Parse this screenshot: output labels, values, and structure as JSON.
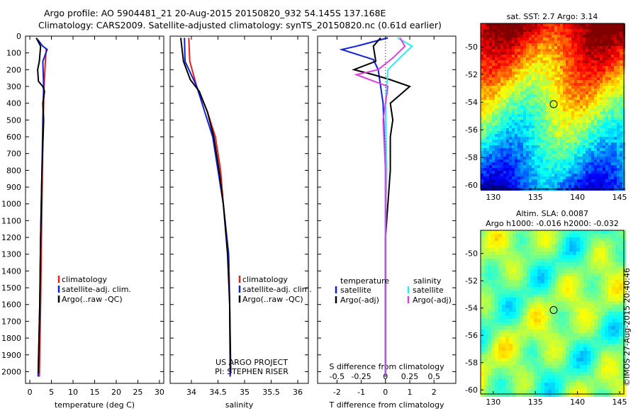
{
  "header": {
    "line1": "Argo profile: AO 5904481_21 20-Aug-2015 20150820_932 54.145S 137.168E",
    "line2": "Climatology: CARS2009. Satellite-adjusted climatology: synTS_20150820.nc (0.61d earlier)"
  },
  "credits": {
    "project": "US ARGO PROJECT",
    "pi": "PI: STEPHEN RISER",
    "imos": "©IMOS 27-Aug-2015 20:40:46"
  },
  "colors": {
    "climatology": "#e8201c",
    "satellite": "#1020d8",
    "argo": "#000000",
    "sat_salinity": "#30e8f0",
    "argo_salinity": "#e040e0"
  },
  "chart_data": [
    {
      "type": "line",
      "id": "temperature",
      "xlabel": "temperature (deg C)",
      "xlim": [
        -1,
        31
      ],
      "xticks": [
        0,
        5,
        10,
        15,
        20,
        25,
        30
      ],
      "ylim": [
        0,
        2070
      ],
      "yticks": [
        0,
        100,
        200,
        300,
        400,
        500,
        600,
        700,
        800,
        900,
        1000,
        1100,
        1200,
        1300,
        1400,
        1500,
        1600,
        1700,
        1800,
        1900,
        2000
      ],
      "legend": [
        "climatology",
        "satellite-adj. clim.",
        "Argo(..raw -QC)"
      ],
      "series": [
        {
          "name": "climatology",
          "color": "#e8201c",
          "points": [
            [
              3.8,
              70
            ],
            [
              3.6,
              150
            ],
            [
              3.3,
              300
            ],
            [
              3.1,
              500
            ],
            [
              2.9,
              800
            ],
            [
              2.7,
              1200
            ],
            [
              2.5,
              1600
            ],
            [
              2.2,
              2030
            ]
          ]
        },
        {
          "name": "satellite-adj. clim.",
          "color": "#1020d8",
          "points": [
            [
              1.8,
              20
            ],
            [
              3.0,
              60
            ],
            [
              4.0,
              80
            ],
            [
              3.0,
              150
            ],
            [
              3.2,
              300
            ],
            [
              3.0,
              500
            ],
            [
              2.8,
              800
            ],
            [
              2.5,
              1200
            ],
            [
              2.3,
              1600
            ],
            [
              1.9,
              2030
            ]
          ]
        },
        {
          "name": "Argo(..raw -QC)",
          "color": "#000000",
          "points": [
            [
              1.5,
              10
            ],
            [
              2.5,
              60
            ],
            [
              2.2,
              150
            ],
            [
              1.8,
              200
            ],
            [
              2.0,
              270
            ],
            [
              3.0,
              300
            ],
            [
              3.4,
              330
            ],
            [
              3.0,
              400
            ],
            [
              3.2,
              500
            ],
            [
              2.8,
              800
            ],
            [
              2.5,
              1200
            ],
            [
              2.3,
              1600
            ],
            [
              2.0,
              1950
            ],
            [
              2.0,
              2010
            ]
          ]
        }
      ]
    },
    {
      "type": "line",
      "id": "salinity",
      "xlabel": "salinity",
      "xlim": [
        33.6,
        36.2
      ],
      "xticks": [
        34,
        34.5,
        35,
        35.5,
        36
      ],
      "xticklabels": [
        "34",
        "34.5",
        "35",
        "35.5",
        "36"
      ],
      "ylim": [
        0,
        2070
      ],
      "legend": [
        "climatology",
        "satellite-adj. clim.",
        "Argo(..raw -QC)"
      ],
      "series": [
        {
          "name": "climatology",
          "color": "#e8201c",
          "points": [
            [
              33.95,
              10
            ],
            [
              33.97,
              150
            ],
            [
              34.1,
              300
            ],
            [
              34.3,
              450
            ],
            [
              34.45,
              600
            ],
            [
              34.55,
              800
            ],
            [
              34.6,
              1000
            ],
            [
              34.7,
              1300
            ],
            [
              34.72,
              1600
            ],
            [
              34.73,
              2030
            ]
          ]
        },
        {
          "name": "satellite-adj. clim.",
          "color": "#1020d8",
          "points": [
            [
              33.87,
              10
            ],
            [
              33.88,
              150
            ],
            [
              34.1,
              300
            ],
            [
              34.25,
              450
            ],
            [
              34.4,
              600
            ],
            [
              34.5,
              800
            ],
            [
              34.6,
              1000
            ],
            [
              34.7,
              1300
            ],
            [
              34.72,
              1600
            ],
            [
              34.73,
              2030
            ]
          ]
        },
        {
          "name": "Argo(..raw -QC)",
          "color": "#000000",
          "points": [
            [
              33.8,
              10
            ],
            [
              33.85,
              150
            ],
            [
              33.98,
              260
            ],
            [
              34.15,
              330
            ],
            [
              34.3,
              450
            ],
            [
              34.42,
              600
            ],
            [
              34.52,
              800
            ],
            [
              34.6,
              1000
            ],
            [
              34.68,
              1300
            ],
            [
              34.72,
              1600
            ],
            [
              34.74,
              2000
            ]
          ]
        }
      ]
    },
    {
      "type": "line",
      "id": "difference",
      "xlabel": "T difference from climatology",
      "xlabel2": "S difference from climatology",
      "xlim": [
        -2.8,
        2.9
      ],
      "xticks": [
        -2,
        -1,
        0,
        1,
        2
      ],
      "x2ticks": [
        -0.5,
        -0.25,
        0,
        0.25,
        0.5
      ],
      "x2ticklabels": [
        "-0.5",
        "-0.25",
        "0",
        "0.25",
        "0.5"
      ],
      "ylim": [
        0,
        2070
      ],
      "legend_headers": [
        "temperature",
        "salinity"
      ],
      "legend": [
        "satellite",
        "Argo(-adj)",
        "satellite",
        "Argo(-adj)"
      ],
      "series": [
        {
          "name": "satellite",
          "color": "#1020d8",
          "points": [
            [
              0.1,
              10
            ],
            [
              -1.2,
              60
            ],
            [
              -1.8,
              80
            ],
            [
              -0.5,
              140
            ],
            [
              -0.3,
              200
            ],
            [
              -0.1,
              400
            ],
            [
              0,
              800
            ],
            [
              0,
              1200
            ],
            [
              0,
              1600
            ],
            [
              0,
              2030
            ]
          ]
        },
        {
          "name": "Argo(-adj)",
          "color": "#000000",
          "points": [
            [
              -0.2,
              10
            ],
            [
              -0.5,
              60
            ],
            [
              -0.4,
              150
            ],
            [
              -1.3,
              200
            ],
            [
              -0.5,
              230
            ],
            [
              0.2,
              260
            ],
            [
              1.0,
              300
            ],
            [
              0.6,
              350
            ],
            [
              0.2,
              400
            ],
            [
              0.3,
              500
            ],
            [
              0.2,
              600
            ],
            [
              0.2,
              800
            ],
            [
              0.1,
              1000
            ],
            [
              0,
              1200
            ],
            [
              0,
              1600
            ],
            [
              0,
              2030
            ]
          ]
        },
        {
          "name": "satellite",
          "color": "#30e8f0",
          "points": [
            [
              0.5,
              10
            ],
            [
              1.1,
              60
            ],
            [
              0.8,
              100
            ],
            [
              0.1,
              200
            ],
            [
              0,
              400
            ],
            [
              0.05,
              800
            ],
            [
              0,
              1200
            ],
            [
              0,
              1600
            ],
            [
              0,
              2030
            ]
          ]
        },
        {
          "name": "Argo(-adj)",
          "color": "#e040e0",
          "points": [
            [
              0.6,
              10
            ],
            [
              0.8,
              60
            ],
            [
              0.3,
              130
            ],
            [
              -0.3,
              200
            ],
            [
              -1.2,
              230
            ],
            [
              0.1,
              300
            ],
            [
              -0.1,
              500
            ],
            [
              0,
              800
            ],
            [
              0,
              1200
            ],
            [
              0,
              1600
            ],
            [
              0,
              2030
            ]
          ]
        }
      ]
    },
    {
      "type": "heatmap",
      "id": "sst-map",
      "title": "sat. SST: 2.7 Argo: 3.14",
      "xlim": [
        128.5,
        145.5
      ],
      "ylim": [
        -60.3,
        -48.3
      ],
      "xticks": [
        130,
        135,
        140,
        145
      ],
      "yticks": [
        -50,
        -52,
        -54,
        -56,
        -58,
        -60
      ],
      "marker": {
        "lon": 137.168,
        "lat": -54.145
      }
    },
    {
      "type": "heatmap",
      "id": "sla-map",
      "title": "Altim. SLA: 0.0087",
      "subtitle": "Argo h1000: -0.016 h2000: -0.032",
      "xlim": [
        128.5,
        145.5
      ],
      "ylim": [
        -60.3,
        -48.3
      ],
      "xticks": [
        130,
        135,
        140,
        145
      ],
      "yticks": [
        -50,
        -52,
        -54,
        -56,
        -58,
        -60
      ],
      "marker": {
        "lon": 137.168,
        "lat": -54.145
      }
    }
  ]
}
